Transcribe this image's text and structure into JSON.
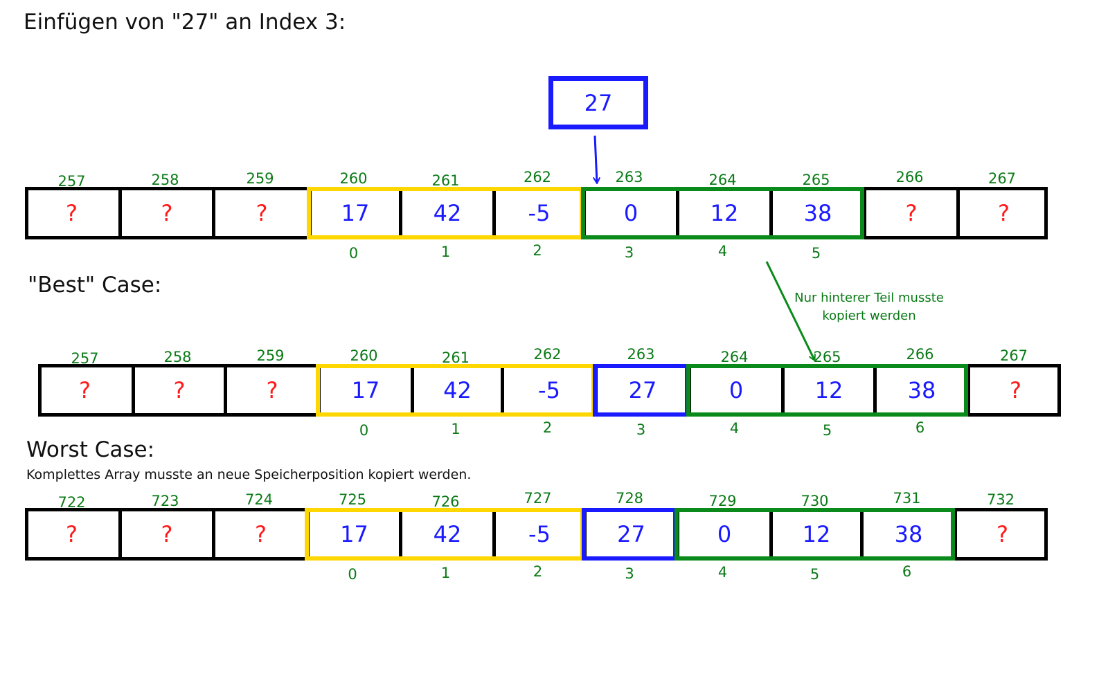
{
  "title": "Einfügen von \"27\" an Index 3:",
  "new_value": "27",
  "sections": {
    "best_case": {
      "heading": "\"Best\" Case:"
    },
    "worst_case": {
      "heading": "Worst Case:",
      "subtext": "Komplettes Array musste an neue Speicherposition kopiert werden."
    }
  },
  "annotation": "Nur hinterer Teil musste kopiert werden",
  "colors": {
    "unknown_text": "#ff1a1a",
    "value_text": "#1a1aff",
    "label_green": "#0a7a16",
    "border_black": "#000000",
    "front_part": "#ffd700",
    "back_part": "#0a8a1a",
    "inserted": "#1a1aff"
  },
  "arrays": [
    {
      "id": "original",
      "addresses": [
        "257",
        "258",
        "259",
        "260",
        "261",
        "262",
        "263",
        "264",
        "265",
        "266",
        "267"
      ],
      "values": [
        "?",
        "?",
        "?",
        "17",
        "42",
        "-5",
        "0",
        "12",
        "38",
        "?",
        "?"
      ],
      "indices": [
        "",
        "",
        "",
        "0",
        "1",
        "2",
        "3",
        "4",
        "5",
        "",
        ""
      ]
    },
    {
      "id": "best_case",
      "addresses": [
        "257",
        "258",
        "259",
        "260",
        "261",
        "262",
        "263",
        "264",
        "265",
        "266",
        "267"
      ],
      "values": [
        "?",
        "?",
        "?",
        "17",
        "42",
        "-5",
        "27",
        "0",
        "12",
        "38",
        "?"
      ],
      "indices": [
        "",
        "",
        "",
        "0",
        "1",
        "2",
        "3",
        "4",
        "5",
        "6",
        ""
      ]
    },
    {
      "id": "worst_case",
      "addresses": [
        "722",
        "723",
        "724",
        "725",
        "726",
        "727",
        "728",
        "729",
        "730",
        "731",
        "732"
      ],
      "values": [
        "?",
        "?",
        "?",
        "17",
        "42",
        "-5",
        "27",
        "0",
        "12",
        "38",
        "?"
      ],
      "indices": [
        "",
        "",
        "",
        "0",
        "1",
        "2",
        "3",
        "4",
        "5",
        "6",
        ""
      ]
    }
  ]
}
